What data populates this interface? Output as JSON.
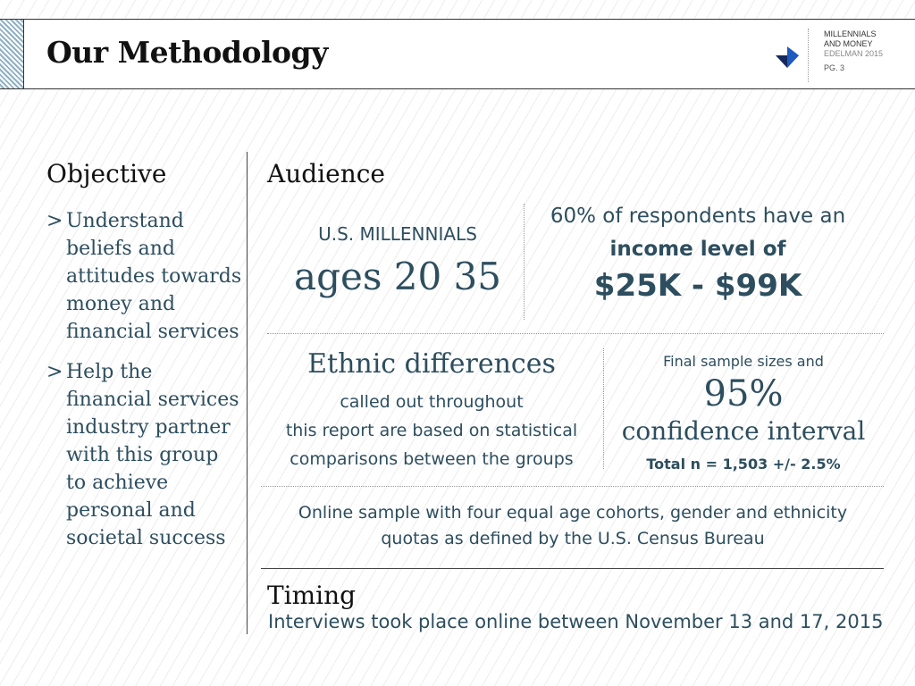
{
  "header": {
    "title": "Our Methodology",
    "brand_lines": [
      "MILLENNIALS",
      "AND MONEY",
      "EDELMAN 2015"
    ],
    "page_label": "PG. 3"
  },
  "objective": {
    "title": "Objective",
    "bullet_mark": ">",
    "bullets": [
      "Understand beliefs and attitudes towards money and financial services",
      "Help the financial services industry partner with this group to achieve personal and societal success"
    ]
  },
  "audience": {
    "title": "Audience",
    "millennials_label": "U.S. MILLENNIALS",
    "ages": "ages 20  35",
    "income_line1": "60% of respondents have an",
    "income_line2": "income level of",
    "income_range": "$25K - $99K",
    "ethnic_title": "Ethnic differences",
    "ethnic_body": [
      "called out throughout",
      "this report are based on statistical",
      "comparisons between the groups"
    ],
    "sample_label": "Final sample sizes and",
    "sample_percent": "95%",
    "sample_ci": "confidence interval",
    "sample_total": "Total n = 1,503 +/- 2.5%",
    "online_lines": [
      "Online sample with four equal age cohorts, gender and ethnicity",
      "quotas as defined by the U.S. Census Bureau"
    ]
  },
  "timing": {
    "title": "Timing",
    "body": "Interviews took place online between November 13 and 17, 2015"
  },
  "colors": {
    "accent_text": "#2d4e5e",
    "arrow_blue": "#1e5bbf",
    "arrow_dark": "#13285c"
  },
  "icons": {
    "brand": "edelman-arrow-icon"
  }
}
